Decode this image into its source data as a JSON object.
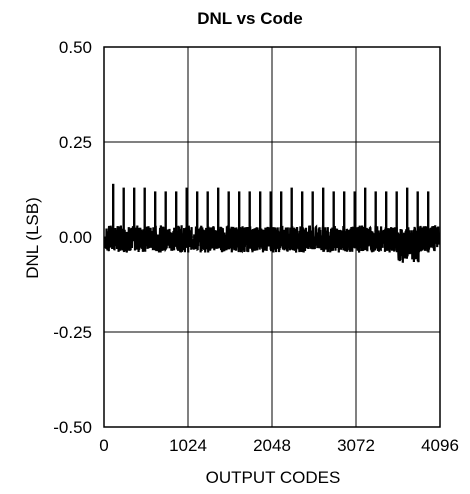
{
  "chart_data": {
    "type": "line",
    "title": "DNL vs Code",
    "xlabel": "OUTPUT CODES",
    "ylabel": "DNL (LSB)",
    "xlim": [
      0,
      4096
    ],
    "ylim": [
      -0.5,
      0.5
    ],
    "x_ticks": [
      0,
      1024,
      2048,
      3072,
      4096
    ],
    "x_tick_labels": [
      "0",
      "1024",
      "2048",
      "3072",
      "4096"
    ],
    "y_ticks": [
      -0.5,
      -0.25,
      0,
      0.25,
      0.5
    ],
    "y_tick_labels": [
      "-0.50",
      "-0.25",
      "0.00",
      "0.25",
      "0.50"
    ],
    "grid": true,
    "colors": {
      "line": "#000000",
      "grid": "#000000",
      "background": "#ffffff"
    },
    "series": [
      {
        "values_description_free": true,
        "x_range": [
          0,
          4096
        ],
        "noise_band": [
          -0.05,
          0.04
        ],
        "spike_period": 128,
        "spike_values": [
          0.14,
          0.13,
          0.13,
          0.13,
          0.12,
          0.12,
          0.12,
          0.13,
          0.12,
          0.12,
          0.13,
          0.12,
          0.12,
          0.12,
          0.12,
          0.12,
          0.12,
          0.13,
          0.12,
          0.12,
          0.13,
          0.12,
          0.12,
          0.12,
          0.13,
          0.12,
          0.12,
          0.12,
          0.13,
          0.12,
          0.12
        ],
        "dip_region": {
          "x_range": [
            3584,
            3840
          ],
          "min": -0.08
        }
      }
    ]
  }
}
